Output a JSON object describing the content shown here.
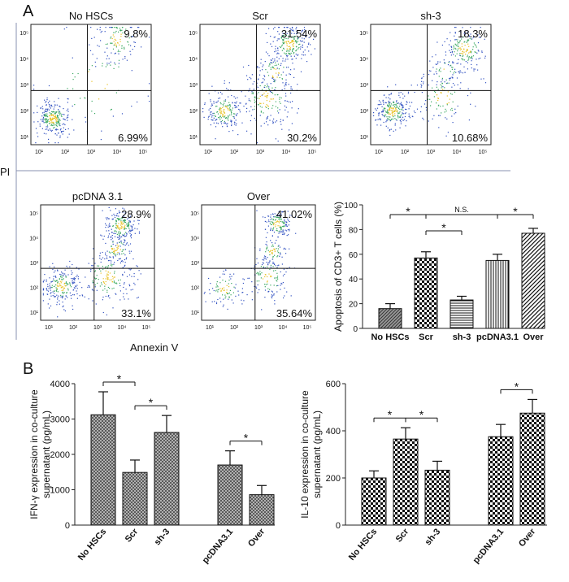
{
  "figure": {
    "panel_a_label": "A",
    "panel_b_label": "B",
    "shared_y_label": "PI",
    "shared_x_label": "Annexin V"
  },
  "flow_plots": [
    {
      "title": "No HSCs",
      "upper_right": "9.8%",
      "lower_right": "6.99%"
    },
    {
      "title": "Scr",
      "upper_right": "31.54%",
      "lower_right": "30.2%"
    },
    {
      "title": "sh-3",
      "upper_right": "18.3%",
      "lower_right": "10.68%"
    },
    {
      "title": "pcDNA 3.1",
      "upper_right": "28.9%",
      "lower_right": "33.1%"
    },
    {
      "title": "Over",
      "upper_right": "41.02%",
      "lower_right": "35.64%"
    }
  ],
  "flow_tick_labels": {
    "x": [
      "10¹",
      "10²",
      "10³",
      "10⁴",
      "10⁵"
    ],
    "y": [
      "10¹",
      "10²",
      "10³",
      "10⁴",
      "10⁵"
    ]
  },
  "chart_data": [
    {
      "id": "apoptosis",
      "type": "bar",
      "ylabel": "Apoptosis of CD3+ T cells (%)",
      "categories": [
        "No HSCs",
        "Scr",
        "sh-3",
        "pcDNA3.1",
        "Over"
      ],
      "values": [
        16,
        57,
        23,
        55,
        77
      ],
      "errors": [
        4,
        5,
        3,
        5,
        4
      ],
      "ylim": [
        0,
        100
      ],
      "yticks": [
        0,
        20,
        40,
        60,
        80,
        100
      ],
      "significance": [
        {
          "from": 0,
          "to": 1,
          "label": "*"
        },
        {
          "from": 1,
          "to": 3,
          "label": "N.S."
        },
        {
          "from": 1,
          "to": 2,
          "label": "*"
        },
        {
          "from": 3,
          "to": 4,
          "label": "*"
        }
      ]
    },
    {
      "id": "ifng",
      "type": "bar",
      "ylabel": "IFN-γ expression in co-culture supernatant (pg/mL)",
      "categories": [
        "No HSCs",
        "Scr",
        "sh-3",
        "pcDNA3.1",
        "Over"
      ],
      "values": [
        3120,
        1490,
        2620,
        1700,
        860
      ],
      "errors": [
        650,
        350,
        480,
        400,
        260
      ],
      "ylim": [
        0,
        4000
      ],
      "yticks": [
        0,
        1000,
        2000,
        3000,
        4000
      ],
      "significance": [
        {
          "from": 0,
          "to": 1,
          "label": "*"
        },
        {
          "from": 1,
          "to": 2,
          "label": "*"
        },
        {
          "from": 3,
          "to": 4,
          "label": "*"
        }
      ]
    },
    {
      "id": "il10",
      "type": "bar",
      "ylabel": "IL-10 expression in co-culture supernatant (pg/mL)",
      "categories": [
        "No HSCs",
        "Scr",
        "sh-3",
        "pcDNA3.1",
        "Over"
      ],
      "values": [
        200,
        365,
        233,
        375,
        475
      ],
      "errors": [
        30,
        48,
        38,
        52,
        58
      ],
      "ylim": [
        0,
        600
      ],
      "yticks": [
        0,
        200,
        400,
        600
      ],
      "significance": [
        {
          "from": 0,
          "to": 1,
          "label": "*"
        },
        {
          "from": 1,
          "to": 2,
          "label": "*"
        },
        {
          "from": 3,
          "to": 4,
          "label": "*"
        }
      ]
    }
  ]
}
